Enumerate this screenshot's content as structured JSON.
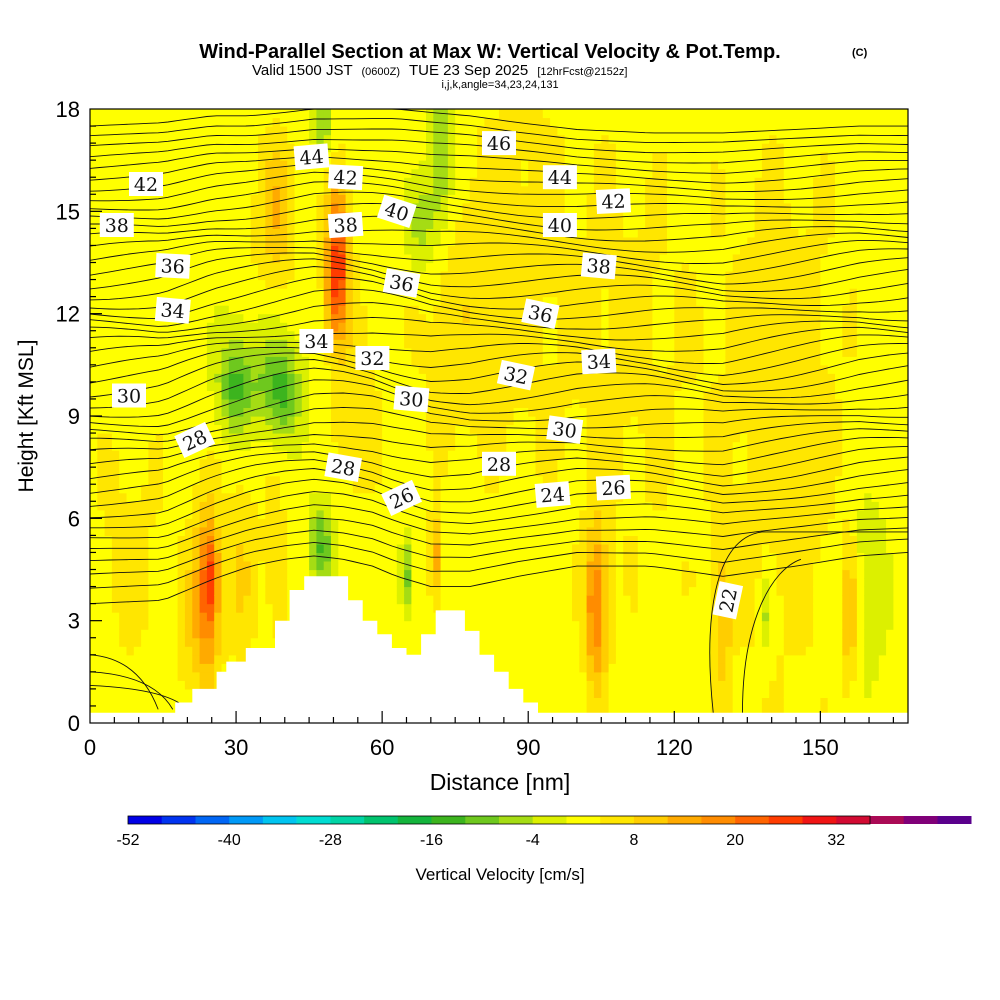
{
  "chart_data": {
    "type": "heatmap",
    "title": "Wind-Parallel Section at Max W: Vertical Velocity & Pot.Temp.",
    "title_mark": "(C)",
    "subtitle": {
      "valid": "Valid 1500 JST",
      "utc": "(0600Z)",
      "date": "TUE 23 Sep 2025",
      "fcst": "[12hrFcst@2152z]"
    },
    "section_indices": "i,j,k,angle=34,23,24,131",
    "xlabel": "Distance [nm]",
    "ylabel": "Height [Kft MSL]",
    "xlim": [
      0,
      168
    ],
    "ylim": [
      0,
      18
    ],
    "x_ticks": [
      "0",
      "30",
      "60",
      "90",
      "120",
      "150"
    ],
    "x_tick_values": [
      0,
      30,
      60,
      90,
      120,
      150
    ],
    "y_ticks": [
      "0",
      "3",
      "6",
      "9",
      "12",
      "15",
      "18"
    ],
    "y_tick_values": [
      0,
      3,
      6,
      9,
      12,
      15,
      18
    ],
    "colorbar": {
      "label": "Vertical Velocity [cm/s]",
      "tick_labels": [
        "-52",
        "-40",
        "-28",
        "-16",
        "-4",
        "8",
        "20",
        "32"
      ],
      "tick_values": [
        -52,
        -40,
        -28,
        -16,
        -4,
        8,
        20,
        32
      ],
      "range": [
        -52,
        36
      ],
      "step": 4,
      "colors": [
        "#0000e6",
        "#0033f0",
        "#0066f5",
        "#0099f7",
        "#00c4f0",
        "#00dcd2",
        "#00d4a5",
        "#00c36e",
        "#14b43c",
        "#3cb41e",
        "#6ec81e",
        "#a5dc14",
        "#dcf000",
        "#ffff00",
        "#ffe600",
        "#ffcd00",
        "#ffaa00",
        "#ff8c00",
        "#ff6400",
        "#ff3c00",
        "#f01414",
        "#d20a32",
        "#aa0a55",
        "#800078",
        "#5a008c"
      ]
    },
    "terrain_profile_kft": {
      "x": [
        0,
        15,
        17.5,
        21,
        23,
        26,
        28,
        32,
        35,
        38,
        41,
        44,
        47,
        50,
        53,
        56,
        59,
        62,
        65,
        68,
        71,
        74,
        77,
        80,
        83,
        86,
        89,
        92,
        95,
        98,
        101,
        168
      ],
      "z": [
        0.3,
        0.3,
        0.6,
        1.0,
        1.0,
        1.5,
        1.8,
        2.2,
        2.2,
        3.0,
        3.9,
        4.3,
        4.3,
        4.3,
        3.6,
        3.0,
        2.6,
        2.2,
        2.0,
        2.6,
        3.3,
        3.3,
        2.7,
        2.0,
        1.5,
        1.0,
        0.6,
        0.3,
        0.3,
        0.3,
        0.3,
        0.3
      ]
    },
    "vertical_velocity_features": [
      {
        "x": 24,
        "z": 3.8,
        "sx": 1.8,
        "sz": 1.9,
        "w": 18
      },
      {
        "x": 25,
        "z": 4.2,
        "sx": 1.1,
        "sz": 0.9,
        "w": 10
      },
      {
        "x": 20,
        "z": 3.0,
        "sx": 1.6,
        "sz": 1.5,
        "w": 5
      },
      {
        "x": 31,
        "z": 4.5,
        "sx": 2.2,
        "sz": 2.0,
        "w": 6
      },
      {
        "x": 38,
        "z": 4.5,
        "sx": 2.0,
        "sz": 2.0,
        "w": 4
      },
      {
        "x": 51,
        "z": 14.0,
        "sx": 1.7,
        "sz": 1.5,
        "w": 19
      },
      {
        "x": 50.5,
        "z": 12.4,
        "sx": 1.6,
        "sz": 1.2,
        "w": 12
      },
      {
        "x": 38.5,
        "z": 15.2,
        "sx": 2.4,
        "sz": 1.4,
        "w": 9
      },
      {
        "x": 36,
        "z": 12.5,
        "sx": 3.5,
        "sz": 2.5,
        "w": 3
      },
      {
        "x": 30,
        "z": 9.8,
        "sx": 2.6,
        "sz": 0.9,
        "w": -14
      },
      {
        "x": 39,
        "z": 9.7,
        "sx": 3.0,
        "sz": 1.0,
        "w": -15
      },
      {
        "x": 34,
        "z": 11.0,
        "sx": 5.0,
        "sz": 1.3,
        "w": -5
      },
      {
        "x": 48,
        "z": 17.5,
        "sx": 1.4,
        "sz": 0.6,
        "w": -10
      },
      {
        "x": 72,
        "z": 16.5,
        "sx": 1.8,
        "sz": 1.6,
        "w": -12
      },
      {
        "x": 68,
        "z": 14.5,
        "sx": 2.0,
        "sz": 1.0,
        "w": -9
      },
      {
        "x": 47.5,
        "z": 5.2,
        "sx": 1.7,
        "sz": 0.9,
        "w": -14
      },
      {
        "x": 65,
        "z": 4.3,
        "sx": 0.9,
        "sz": 0.8,
        "w": -12
      },
      {
        "x": 104,
        "z": 3.4,
        "sx": 1.6,
        "sz": 1.6,
        "w": 18
      },
      {
        "x": 130,
        "z": 3.0,
        "sx": 1.2,
        "sz": 1.6,
        "w": 9
      },
      {
        "x": 139,
        "z": 3.2,
        "sx": 0.9,
        "sz": 0.9,
        "w": -8
      },
      {
        "x": 156,
        "z": 3.2,
        "sx": 1.0,
        "sz": 1.5,
        "w": 11
      },
      {
        "x": 71,
        "z": 4.8,
        "sx": 0.9,
        "sz": 0.9,
        "w": 12
      },
      {
        "x": 75,
        "z": 12.0,
        "sx": 6.0,
        "sz": 3.0,
        "w": 4
      },
      {
        "x": 88,
        "z": 14.0,
        "sx": 8.0,
        "sz": 5.0,
        "w": 3
      },
      {
        "x": 110,
        "z": 11.0,
        "sx": 10.0,
        "sz": 5.0,
        "w": 3
      },
      {
        "x": 142,
        "z": 9.0,
        "sx": 10.0,
        "sz": 6.0,
        "w": 4
      },
      {
        "x": 55,
        "z": 9.0,
        "sx": 3.0,
        "sz": 2.0,
        "w": 5
      },
      {
        "x": 160,
        "z": 4.0,
        "sx": 3.0,
        "sz": 2.5,
        "w": -5
      },
      {
        "x": 8,
        "z": 5.0,
        "sx": 6.0,
        "sz": 3.0,
        "w": 3
      }
    ],
    "isentrope_profiles": {
      "x": [
        0,
        15,
        25,
        33,
        40,
        46,
        52,
        58,
        63,
        70,
        78,
        88,
        100,
        115,
        130,
        145,
        158,
        168
      ],
      "base_z": [
        3.5,
        3.6,
        4.2,
        4.6,
        4.8,
        4.9,
        4.8,
        4.6,
        4.3,
        4.0,
        4.0,
        4.3,
        4.6,
        4.6,
        4.3,
        4.6,
        4.9,
        5.0
      ],
      "top_z": [
        17.5,
        17.6,
        17.8,
        17.8,
        17.9,
        18.0,
        18.0,
        18.0,
        18.0,
        17.9,
        17.8,
        17.6,
        17.4,
        17.3,
        17.3,
        17.4,
        17.5,
        17.5
      ],
      "count": 44
    },
    "contour_labels": [
      {
        "text": "44",
        "x": 45.5,
        "z": 16.6,
        "angle": -5
      },
      {
        "text": "42",
        "x": 11.5,
        "z": 15.8,
        "angle": 0
      },
      {
        "text": "42",
        "x": 52.5,
        "z": 16.0,
        "angle": 3
      },
      {
        "text": "46",
        "x": 84,
        "z": 17.0,
        "angle": 0
      },
      {
        "text": "44",
        "x": 96.5,
        "z": 16.0,
        "angle": 0
      },
      {
        "text": "42",
        "x": 107.5,
        "z": 15.3,
        "angle": -3
      },
      {
        "text": "40",
        "x": 63,
        "z": 15.0,
        "angle": 18
      },
      {
        "text": "40",
        "x": 96.5,
        "z": 14.6,
        "angle": 0
      },
      {
        "text": "38",
        "x": 5.5,
        "z": 14.6,
        "angle": 0
      },
      {
        "text": "38",
        "x": 52.5,
        "z": 14.6,
        "angle": -4
      },
      {
        "text": "38",
        "x": 104.5,
        "z": 13.4,
        "angle": 5
      },
      {
        "text": "36",
        "x": 17,
        "z": 13.4,
        "angle": 3
      },
      {
        "text": "36",
        "x": 64,
        "z": 12.9,
        "angle": 10
      },
      {
        "text": "36",
        "x": 92.5,
        "z": 12.0,
        "angle": 12
      },
      {
        "text": "34",
        "x": 17,
        "z": 12.1,
        "angle": 5
      },
      {
        "text": "34",
        "x": 46.5,
        "z": 11.2,
        "angle": 0
      },
      {
        "text": "34",
        "x": 104.5,
        "z": 10.6,
        "angle": -3
      },
      {
        "text": "32",
        "x": 58,
        "z": 10.7,
        "angle": 0
      },
      {
        "text": "32",
        "x": 87.5,
        "z": 10.2,
        "angle": 12
      },
      {
        "text": "30",
        "x": 8,
        "z": 9.6,
        "angle": 0
      },
      {
        "text": "30",
        "x": 66,
        "z": 9.5,
        "angle": 5
      },
      {
        "text": "30",
        "x": 97.5,
        "z": 8.6,
        "angle": 8
      },
      {
        "text": "28",
        "x": 21.5,
        "z": 8.3,
        "angle": -25
      },
      {
        "text": "28",
        "x": 52,
        "z": 7.5,
        "angle": 10
      },
      {
        "text": "28",
        "x": 84,
        "z": 7.6,
        "angle": 0
      },
      {
        "text": "26",
        "x": 64,
        "z": 6.6,
        "angle": -25
      },
      {
        "text": "26",
        "x": 107.5,
        "z": 6.9,
        "angle": -3
      },
      {
        "text": "24",
        "x": 95,
        "z": 6.7,
        "angle": -5
      },
      {
        "text": "22",
        "x": 131,
        "z": 3.6,
        "angle": -78
      }
    ]
  }
}
